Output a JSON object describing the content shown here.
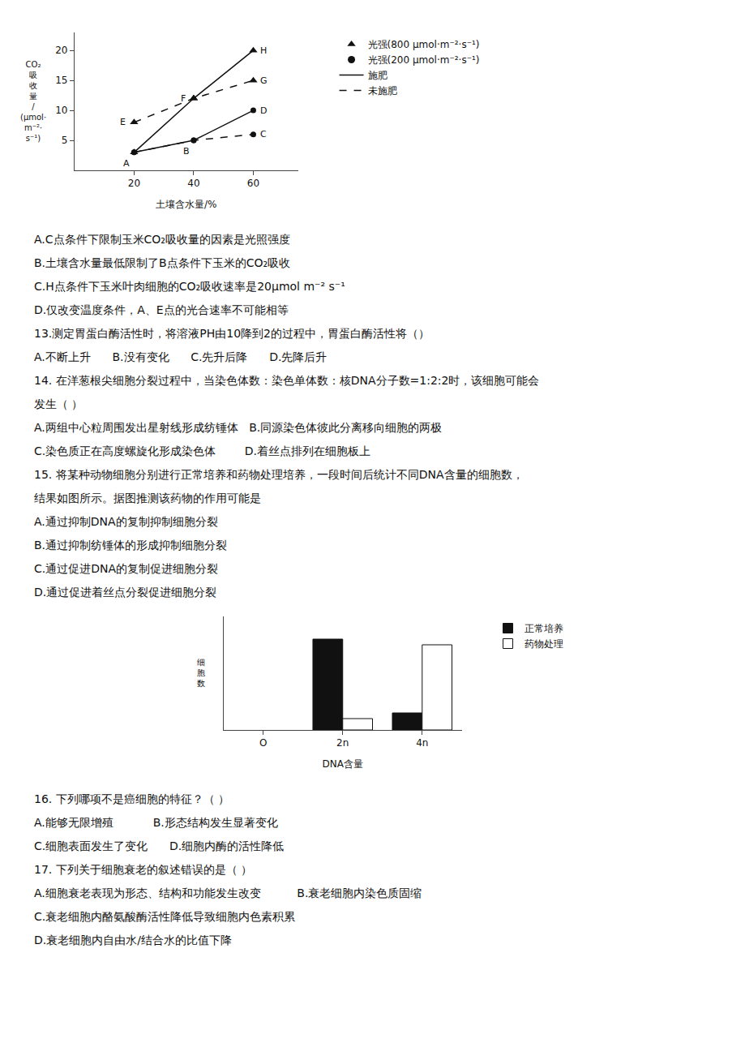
{
  "chart_data": [
    {
      "type": "line",
      "xlabel": "土壤含水量/%",
      "ylabel": "CO₂\n吸\n收\n量\n/\n(μmol·\nm⁻²·\ns⁻¹)",
      "xlim": [
        0,
        75
      ],
      "ylim": [
        0,
        23
      ],
      "xticks": [
        20,
        40,
        60
      ],
      "yticks": [
        5,
        10,
        15,
        20
      ],
      "grid": false,
      "legend": "right",
      "color": "#111111",
      "x": [
        20,
        40,
        60
      ],
      "series": [
        {
          "values": [
            3,
            12,
            20
          ],
          "marker": "triangle",
          "line_style": "solid"
        },
        {
          "values": [
            8,
            12,
            15
          ],
          "marker": "triangle",
          "line_style": "dash"
        },
        {
          "values": [
            3,
            5,
            10
          ],
          "marker": "circle",
          "line_style": "solid"
        },
        {
          "values": [
            3,
            5,
            6
          ],
          "marker": "circle",
          "line_style": "dash"
        }
      ],
      "legend_entries": [
        {
          "name": "光强(800 μmol·m⁻²·s⁻¹)",
          "marker": "triangle"
        },
        {
          "name": "光强(200 μmol·m⁻²·s⁻¹)",
          "marker": "circle"
        },
        {
          "name": "施肥",
          "line_style": "solid"
        },
        {
          "name": "未施肥",
          "line_style": "dash"
        }
      ],
      "annotations": [
        {
          "text": "A",
          "x": 20,
          "y": 3
        },
        {
          "text": "B",
          "x": 40,
          "y": 5
        },
        {
          "text": "C",
          "x": 60,
          "y": 6
        },
        {
          "text": "D",
          "x": 60,
          "y": 10
        },
        {
          "text": "E",
          "x": 20,
          "y": 8
        },
        {
          "text": "F",
          "x": 40,
          "y": 12
        },
        {
          "text": "G",
          "x": 60,
          "y": 15
        },
        {
          "text": "H",
          "x": 60,
          "y": 20
        }
      ]
    },
    {
      "type": "text",
      "annotations": [
        "A.C点条件下限制玉米CO₂吸收量的因素是光照强度",
        "B.土壤含水量最低限制了B点条件下玉米的CO₂吸收",
        "C.H点条件下玉米叶肉细胞的CO₂吸收速率是20μmol m⁻² s⁻¹",
        "D.仅改变温度条件，A、E点的光合速率不可能相等",
        "13.测定胃蛋白酶活性时，将溶液PH由10降到2的过程中，胃蛋白酶活性将（）",
        "A.不断上升      B.没有变化      C.先升后降      D.先降后升",
        "14. 在洋葱根尖细胞分裂过程中，当染色体数：染色单体数：核DNA分子数=1:2:2时，该细胞可能会",
        "发生（ ）",
        "A.两组中心粒周围发出星射线形成纺锤体   B.同源染色体彼此分离移向细胞的两极",
        "C.染色质正在高度螺旋化形成染色体        D.着丝点排列在细胞板上",
        "15. 将某种动物细胞分别进行正常培养和药物处理培养，一段时间后统计不同DNA含量的细胞数，",
        "结果如图所示。据图推测该药物的作用可能是",
        "A.通过抑制DNA的复制抑制细胞分裂",
        "B.通过抑制纺锤体的形成抑制细胞分裂",
        "C.通过促进DNA的复制促进细胞分裂",
        "D.通过促进着丝点分裂促进细胞分裂",
        "16. 下列哪项不是癌细胞的特征？（ ）",
        "A.能够无限增殖           B.形态结构发生显著变化",
        "C.细胞表面发生了变化      D.细胞内酶的活性降低",
        "17. 下列关于细胞衰老的叙述错误的是（ ）",
        "A.细胞衰老表现为形态、结构和功能发生改变          B.衰老细胞内染色质固缩",
        "C.衰老细胞内酪氨酸酶活性降低导致细胞内色素积累",
        "D.衰老细胞内自由水/结合水的比值下降"
      ]
    },
    {
      "type": "bar",
      "xlabel": "DNA含量",
      "ylabel": "细\n胞\n数",
      "categories": [
        "O",
        "2n",
        "4n"
      ],
      "series": [
        {
          "name": "正常培养",
          "color": "#111111",
          "values": [
            null,
            8.0,
            1.5
          ]
        },
        {
          "name": "药物处理",
          "color": "#ffffff",
          "values": [
            null,
            1.0,
            7.5
          ]
        }
      ],
      "ylim": [
        0,
        10
      ],
      "tick_labels": "x",
      "grid": false,
      "legend": "right"
    }
  ]
}
